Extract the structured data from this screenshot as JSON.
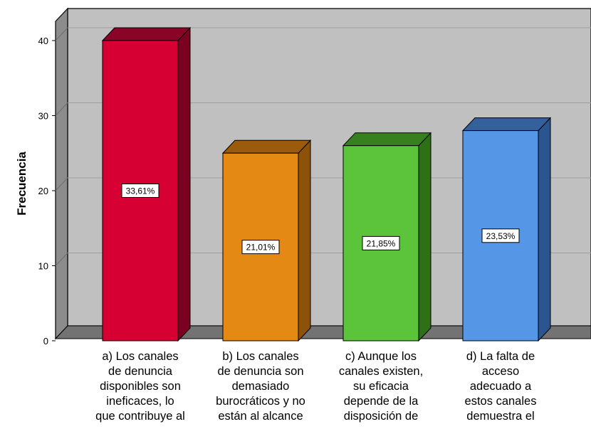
{
  "chart_data": {
    "type": "bar",
    "ylabel": "Frecuencia",
    "xlabel": "",
    "ylim": [
      0,
      40
    ],
    "yticks": [
      0,
      10,
      20,
      30,
      40
    ],
    "grid": true,
    "categories": [
      "a) Los canales de denuncia disponibles son ineficaces, lo que contribuye al",
      "b) Los canales de denuncia son demasiado burocráticos y no están al alcance",
      "c) Aunque los canales existen, su eficacia depende de la disposición de",
      "d) La falta de acceso adecuado a estos canales demuestra el"
    ],
    "category_lines": [
      [
        "a) Los canales",
        "de denuncia",
        "disponibles son",
        "ineficaces, lo",
        "que contribuye al"
      ],
      [
        "b) Los canales",
        "de denuncia son",
        "demasiado",
        "burocráticos y no",
        "están al alcance"
      ],
      [
        "c) Aunque los",
        "canales existen,",
        "su eficacia",
        "depende de la",
        "disposición de"
      ],
      [
        "d) La falta de",
        "acceso",
        "adecuado a",
        "estos canales",
        "demuestra el"
      ]
    ],
    "values": [
      40,
      25,
      26,
      28
    ],
    "data_labels": [
      "33,61%",
      "21,01%",
      "21,85%",
      "23,53%"
    ],
    "colors": [
      {
        "front": "#d70032",
        "side": "#7c0022",
        "top": "#8a0428"
      },
      {
        "front": "#e48a14",
        "side": "#8c5209",
        "top": "#9a5c0c"
      },
      {
        "front": "#5cc43a",
        "side": "#2d7016",
        "top": "#37801e"
      },
      {
        "front": "#5597e6",
        "side": "#2a5590",
        "top": "#34609c"
      }
    ]
  }
}
